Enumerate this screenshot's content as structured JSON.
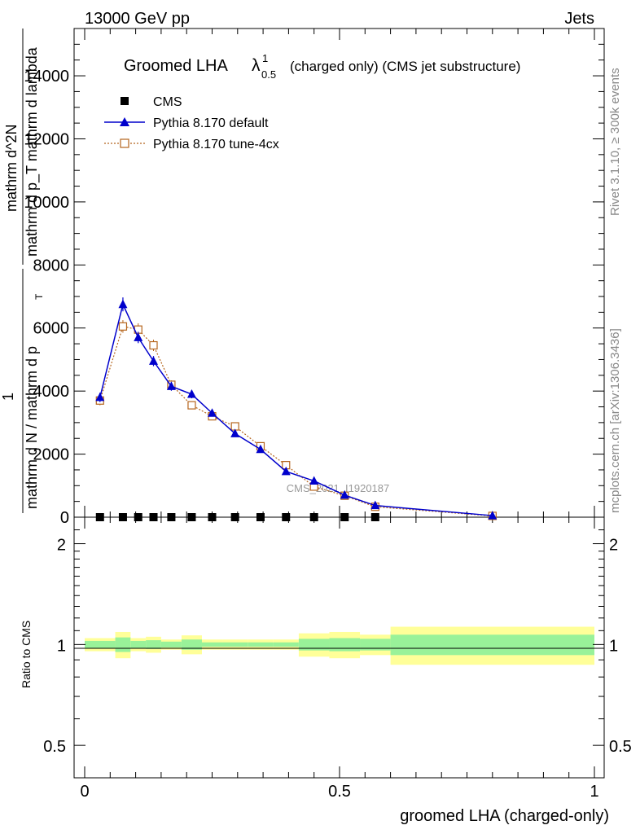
{
  "header": {
    "left": "13000 GeV pp",
    "right": "Jets"
  },
  "side_labels": {
    "rivet": "Rivet 3.1.10, ≥ 300k events",
    "mcplots": "mcplots.cern.ch [arXiv:1306.3436]"
  },
  "watermark": "CMS_2021_I1920187",
  "colors": {
    "cms": "#000000",
    "default": "#0000cc",
    "tune4cx": "#b5651d",
    "band_inner": "#99f299",
    "band_outer": "#ffff99"
  },
  "chart_data": [
    {
      "type": "line",
      "title_main": "Groomed LHA",
      "title_symbol": "λ",
      "title_sup": "1",
      "title_sub": "0.5",
      "title_rest": "(charged only) (CMS jet substructure)",
      "ylabel_num": "mathrm d",
      "ylabel_full": "mathrm d N / mathrm d p",
      "ylabel_one": "1",
      "ylabel_top": "mathrm d^2N",
      "ylabel_bottom": "mathrm d p_T mathrm d lambda",
      "ylabel_dn": "mathrm d N / mathrm d p",
      "ylabel_t": "T",
      "ylabel_frac_num": "mathrm d",
      "ylim": [
        0,
        15500
      ],
      "yticks": [
        0,
        2000,
        4000,
        6000,
        8000,
        10000,
        12000,
        14000
      ],
      "ytick_labels": [
        "0",
        "2000",
        "4000",
        "6000",
        "8000",
        "10000",
        "12000",
        "14000"
      ],
      "xlim": [
        -0.02,
        1.02
      ],
      "legend": [
        "CMS",
        "Pythia 8.170 default",
        "Pythia 8.170 tune-4cx"
      ],
      "series": [
        {
          "name": "CMS",
          "x": [
            0.03,
            0.075,
            0.105,
            0.135,
            0.17,
            0.21,
            0.25,
            0.295,
            0.345,
            0.395,
            0.45,
            0.51,
            0.57
          ],
          "values": [
            0,
            0,
            0,
            0,
            0,
            0,
            0,
            0,
            0,
            0,
            0,
            0,
            0
          ]
        },
        {
          "name": "Pythia 8.170 default",
          "x": [
            0.03,
            0.075,
            0.105,
            0.135,
            0.17,
            0.21,
            0.25,
            0.295,
            0.345,
            0.395,
            0.45,
            0.51,
            0.57,
            0.8
          ],
          "values": [
            3800,
            6750,
            5700,
            4950,
            4150,
            3900,
            3300,
            2650,
            2150,
            1450,
            1150,
            700,
            370,
            50
          ],
          "errors": [
            150,
            220,
            180,
            160,
            140,
            130,
            110,
            90,
            80,
            60,
            50,
            40,
            30,
            10
          ]
        },
        {
          "name": "Pythia 8.170 tune-4cx",
          "x": [
            0.03,
            0.075,
            0.105,
            0.135,
            0.17,
            0.21,
            0.25,
            0.295,
            0.345,
            0.395,
            0.45,
            0.51,
            0.57,
            0.8
          ],
          "values": [
            3700,
            6050,
            5950,
            5450,
            4200,
            3550,
            3200,
            2880,
            2250,
            1650,
            970,
            680,
            330,
            40
          ],
          "errors": [
            150,
            200,
            200,
            180,
            140,
            120,
            110,
            90,
            80,
            60,
            50,
            40,
            30,
            10
          ]
        }
      ]
    },
    {
      "type": "area",
      "ylabel": "Ratio to CMS",
      "xlabel": "groomed LHA (charged-only)",
      "ylim": [
        0.4,
        2.4
      ],
      "yticks": [
        0.5,
        1,
        2
      ],
      "ytick_labels": [
        "0.5",
        "1",
        "2"
      ],
      "xticks": [
        0,
        0.5,
        1
      ],
      "xtick_labels": [
        "0",
        "0.5",
        "1"
      ],
      "bins": [
        {
          "lo": 0.0,
          "hi": 0.06,
          "inner": 0.025,
          "outer": 0.045
        },
        {
          "lo": 0.06,
          "hi": 0.09,
          "inner": 0.05,
          "outer": 0.09
        },
        {
          "lo": 0.09,
          "hi": 0.12,
          "inner": 0.025,
          "outer": 0.045
        },
        {
          "lo": 0.12,
          "hi": 0.15,
          "inner": 0.03,
          "outer": 0.055
        },
        {
          "lo": 0.15,
          "hi": 0.19,
          "inner": 0.02,
          "outer": 0.035
        },
        {
          "lo": 0.19,
          "hi": 0.23,
          "inner": 0.035,
          "outer": 0.065
        },
        {
          "lo": 0.23,
          "hi": 0.27,
          "inner": 0.015,
          "outer": 0.035
        },
        {
          "lo": 0.27,
          "hi": 0.32,
          "inner": 0.015,
          "outer": 0.035
        },
        {
          "lo": 0.32,
          "hi": 0.37,
          "inner": 0.015,
          "outer": 0.035
        },
        {
          "lo": 0.37,
          "hi": 0.42,
          "inner": 0.015,
          "outer": 0.035
        },
        {
          "lo": 0.42,
          "hi": 0.48,
          "inner": 0.04,
          "outer": 0.08
        },
        {
          "lo": 0.48,
          "hi": 0.54,
          "inner": 0.045,
          "outer": 0.09
        },
        {
          "lo": 0.54,
          "hi": 0.6,
          "inner": 0.04,
          "outer": 0.07
        },
        {
          "lo": 0.6,
          "hi": 1.0,
          "inner": 0.07,
          "outer": 0.13
        }
      ]
    }
  ]
}
